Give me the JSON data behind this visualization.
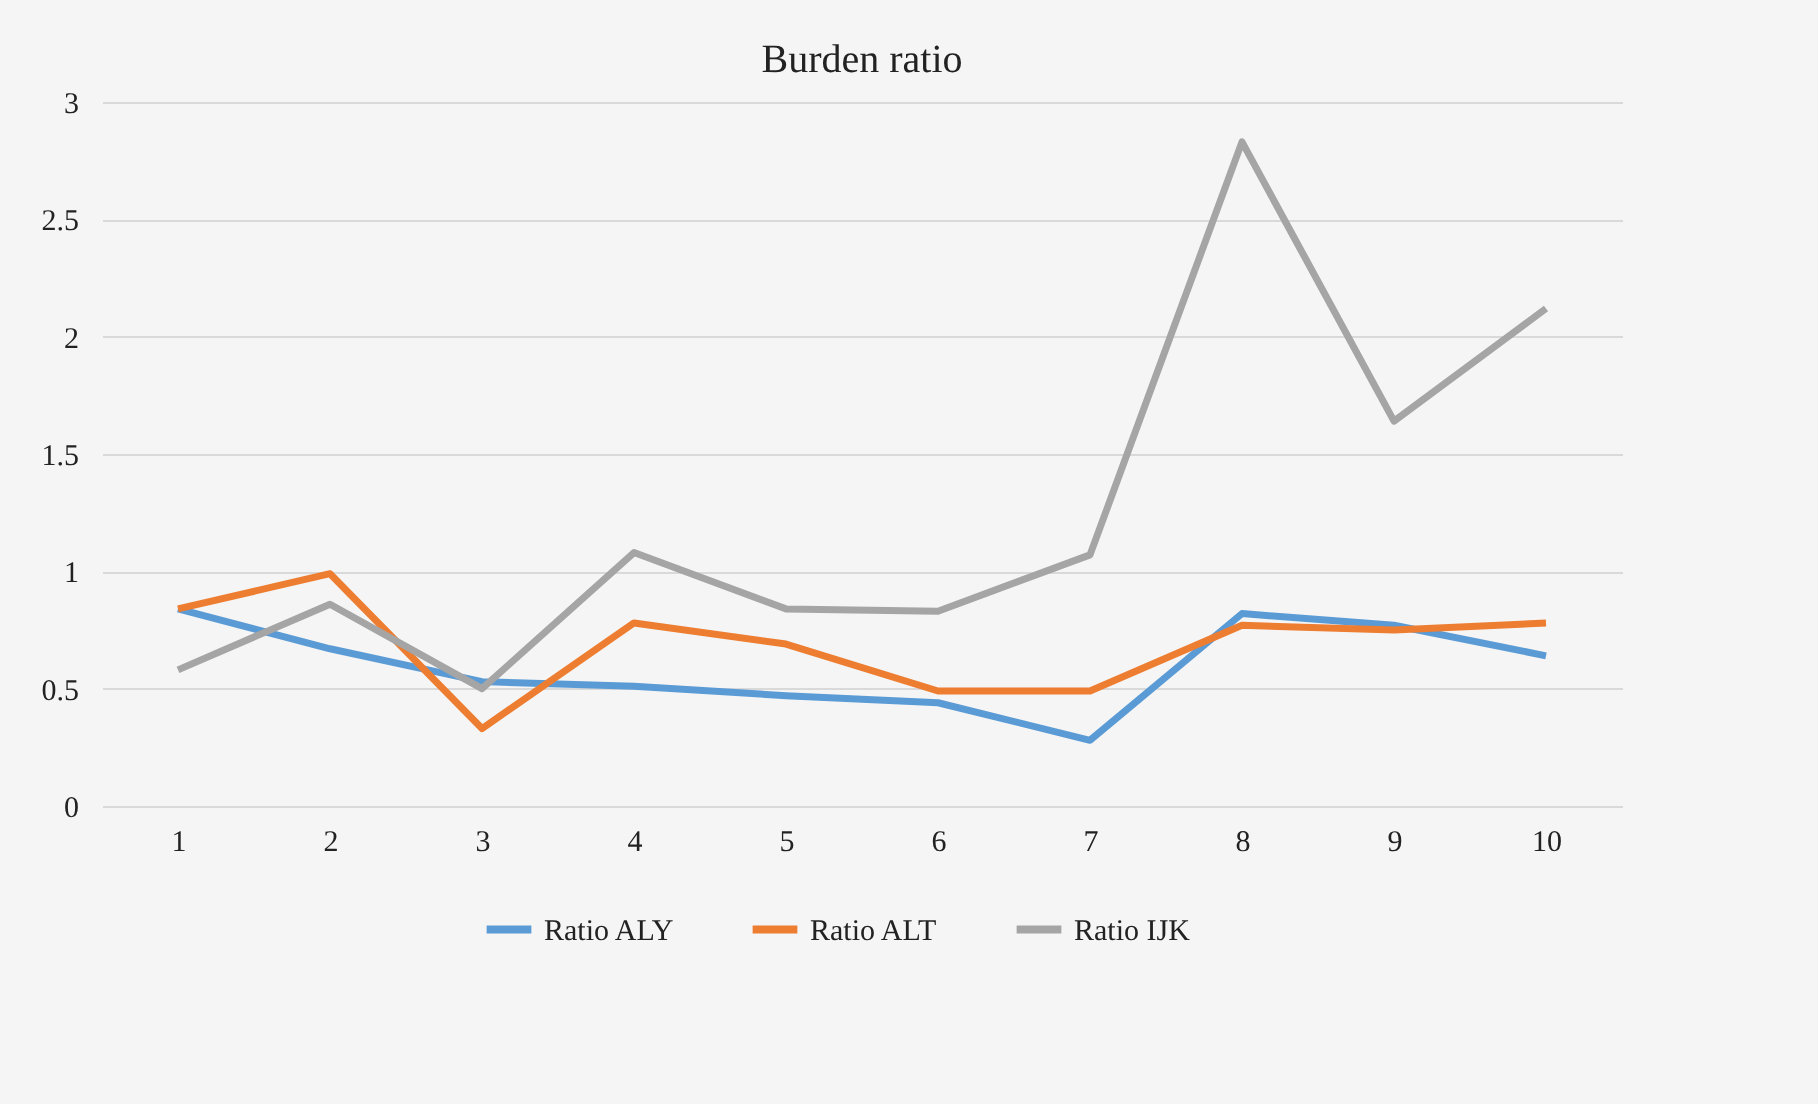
{
  "chart_data": {
    "type": "line",
    "title": "Burden ratio",
    "categories": [
      "1",
      "2",
      "3",
      "4",
      "5",
      "6",
      "7",
      "8",
      "9",
      "10"
    ],
    "series": [
      {
        "name": "Ratio ALY",
        "color": "#5b9bd5",
        "values": [
          0.84,
          0.67,
          0.53,
          0.51,
          0.47,
          0.44,
          0.28,
          0.82,
          0.77,
          0.64
        ]
      },
      {
        "name": "Ratio ALT",
        "color": "#ed7d31",
        "values": [
          0.84,
          0.99,
          0.33,
          0.78,
          0.69,
          0.49,
          0.49,
          0.77,
          0.75,
          0.78
        ]
      },
      {
        "name": "Ratio IJK",
        "color": "#a5a5a5",
        "values": [
          0.58,
          0.86,
          0.5,
          1.08,
          0.84,
          0.83,
          1.07,
          2.83,
          1.64,
          2.12
        ]
      }
    ],
    "ylim": [
      0,
      3
    ],
    "yticks": [
      0,
      0.5,
      1,
      1.5,
      2,
      2.5,
      3
    ],
    "grid": "y",
    "legend": "bottom",
    "marker": "none",
    "line_style": "solid"
  }
}
